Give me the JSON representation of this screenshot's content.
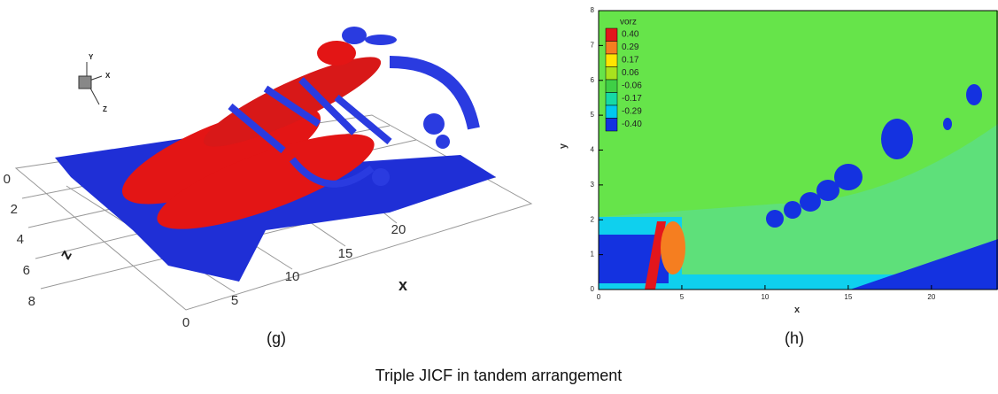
{
  "panels": [
    {
      "label": "(g)",
      "axis_labels": {
        "x": "x",
        "z": "z"
      },
      "triad": {
        "x": "X",
        "y": "Y",
        "z": "Z"
      },
      "z_ticks": [
        "0",
        "2",
        "4",
        "6",
        "8"
      ],
      "x_ticks": [
        "0",
        "5",
        "10",
        "15",
        "20"
      ]
    },
    {
      "label": "(h)",
      "xlabel": "x",
      "ylabel": "y",
      "xlim": [
        0,
        24
      ],
      "ylim": [
        0,
        8
      ],
      "xticks": [
        0,
        5,
        10,
        15,
        20
      ],
      "yticks": [
        0,
        1,
        2,
        3,
        4,
        5,
        6,
        7,
        8
      ],
      "legend": {
        "title": "vorz",
        "levels": [
          {
            "label": "0.40",
            "color": "#e3161c"
          },
          {
            "label": "0.29",
            "color": "#f57e20"
          },
          {
            "label": "0.17",
            "color": "#ffe400"
          },
          {
            "label": "0.06",
            "color": "#a8e21e"
          },
          {
            "label": "-0.06",
            "color": "#3fcf46"
          },
          {
            "label": "-0.17",
            "color": "#16d9a5"
          },
          {
            "label": "-0.29",
            "color": "#00c8f0"
          },
          {
            "label": "-0.40",
            "color": "#1432e0"
          }
        ]
      }
    }
  ],
  "caption": "Triple JICF in tandem arrangement"
}
